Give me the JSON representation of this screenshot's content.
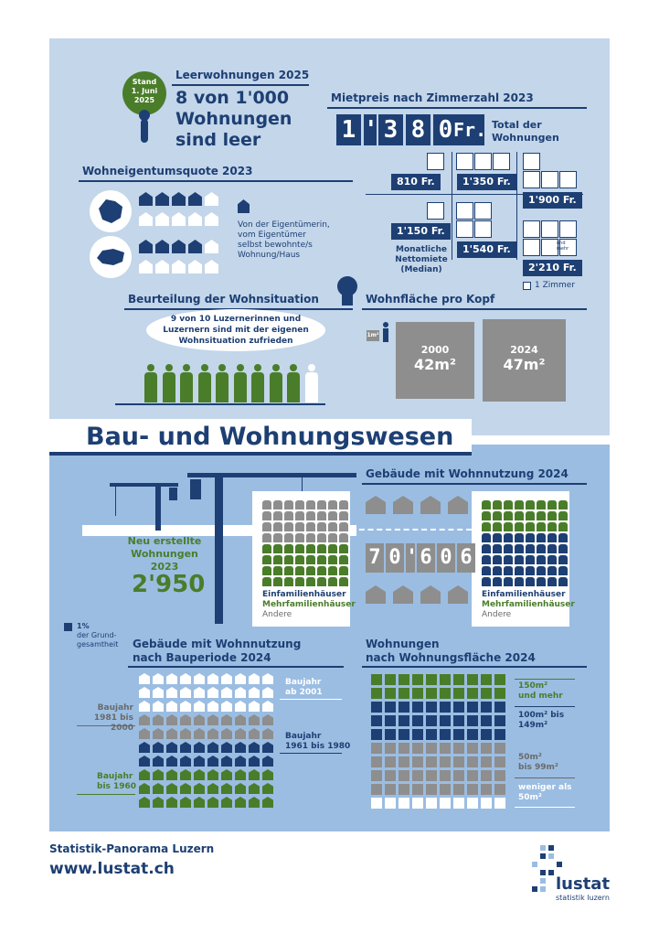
{
  "title": "Bau- und Wohnungswesen",
  "leerwohnungen": {
    "badge_lines": [
      "Stand",
      "1. Juni",
      "2025"
    ],
    "header": "Leerwohnungen 2025",
    "big_lines": [
      "8 von 1'000",
      "Wohnungen",
      "sind leer"
    ]
  },
  "mietpreis": {
    "header": "Mietpreis nach Zimmerzahl 2023",
    "total_digits": [
      "1",
      "'",
      "3",
      "8",
      "0"
    ],
    "total_unit": "Fr.",
    "total_label_lines": [
      "Total der",
      "Wohnungen"
    ],
    "prices": [
      "810 Fr.",
      "1'350 Fr.",
      "1'900 Fr.",
      "1'150 Fr.",
      "1'540 Fr.",
      "2'210 Fr."
    ],
    "note_lines": [
      "Monatliche",
      "Nettomiete",
      "(Median)"
    ],
    "legend": "1 Zimmer",
    "tiny_note": "und mehr"
  },
  "eigentum": {
    "header": "Wohneigentumsquote 2023",
    "legend_lines": [
      "Von der Eigentümerin,",
      "vom Eigentümer",
      "selbst bewohnte/s",
      "Wohnung/Haus"
    ]
  },
  "beurteilung": {
    "header": "Beurteilung der Wohnsituation",
    "bubble_lines": [
      "9 von 10 Luzernerinnen und",
      "Luzernern sind mit der eigenen",
      "Wohnsituation zufrieden"
    ]
  },
  "wohnflaeche": {
    "header": "Wohnfläche pro Kopf",
    "scale": "1m²",
    "years": [
      {
        "year": "2000",
        "value": "42m²"
      },
      {
        "year": "2024",
        "value": "47m²"
      }
    ]
  },
  "neubau": {
    "label_lines": [
      "Neu erstellte",
      "Wohnungen 2023"
    ],
    "value": "2'950"
  },
  "gebaeude": {
    "header": "Gebäude mit Wohnnutzung 2024",
    "total_digits": [
      "7",
      "0",
      "'",
      "6",
      "0",
      "6"
    ],
    "legend": [
      "Einfamilienhäuser",
      "Mehrfamilienhäuser",
      "Andere"
    ]
  },
  "one_pct": [
    "1%",
    "der Grund-",
    "gesamtheit"
  ],
  "bauperiode": {
    "header_lines": [
      "Gebäude mit Wohnnutzung",
      "nach Bauperiode 2024"
    ],
    "labels": [
      [
        "Baujahr",
        "ab 2001"
      ],
      [
        "Baujahr",
        "1981 bis 2000"
      ],
      [
        "Baujahr",
        "1961 bis 1980"
      ],
      [
        "Baujahr",
        "bis 1960"
      ]
    ]
  },
  "wohnflaeche_wohnungen": {
    "header_lines": [
      "Wohnungen",
      "nach Wohnungsfläche 2024"
    ],
    "labels": [
      [
        "150m²",
        "und mehr"
      ],
      [
        "100m² bis",
        "149m²"
      ],
      [
        "50m²",
        "bis 99m²"
      ],
      [
        "weniger als",
        "50m²"
      ]
    ]
  },
  "footer": {
    "panorama": "Statistik-Panorama Luzern",
    "url": "www.lustat.ch",
    "logo_name": "lustat",
    "logo_sub": "statistik luzern"
  },
  "colors": {
    "navy": "#1d3f73",
    "green": "#4a7d2a",
    "grey": "#8e8e8e",
    "light": "#c3d6ea",
    "mid": "#9bbde2"
  }
}
